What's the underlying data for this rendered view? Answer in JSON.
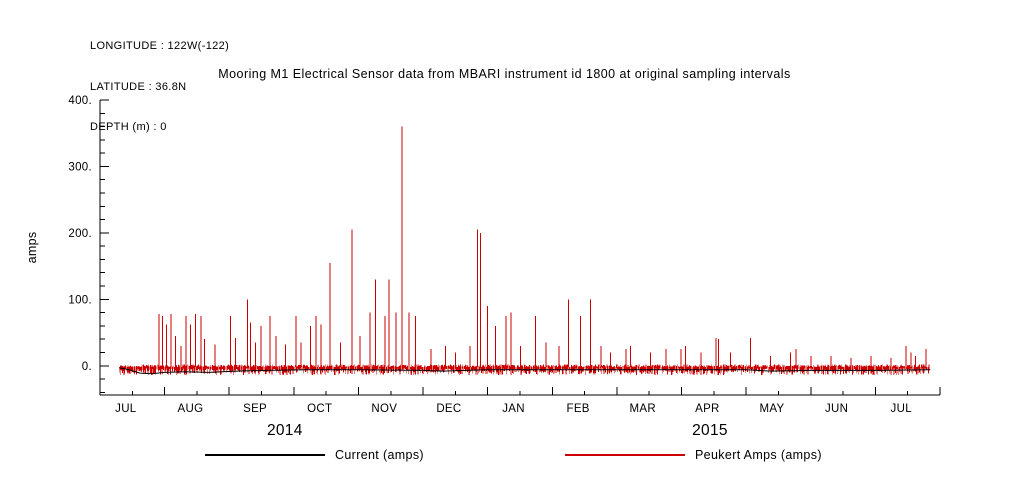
{
  "meta": {
    "longitude": "LONGITUDE : 122W(-122)",
    "latitude": "LATITUDE : 36.8N",
    "depth": "DEPTH (m) : 0"
  },
  "chart_data": {
    "type": "line",
    "title": "Mooring M1 Electrical Sensor data from MBARI instrument id 1800 at original sampling intervals",
    "ylabel": "amps",
    "xlabel": "",
    "xlim": [
      0,
      13
    ],
    "ylim": [
      -44,
      400
    ],
    "grid": false,
    "legend_position": "bottom",
    "yticks": [
      {
        "value": 0,
        "label": "0."
      },
      {
        "value": 100,
        "label": "100."
      },
      {
        "value": 200,
        "label": "200."
      },
      {
        "value": 300,
        "label": "300."
      },
      {
        "value": 400,
        "label": "400."
      }
    ],
    "y_minor_step": 20,
    "month_labels": [
      "JUL",
      "AUG",
      "SEP",
      "OCT",
      "NOV",
      "DEC",
      "JAN",
      "FEB",
      "MAR",
      "APR",
      "MAY",
      "JUN",
      "JUL"
    ],
    "year_labels": [
      {
        "label": "2014",
        "t": 2.86
      },
      {
        "label": "2015",
        "t": 9.44
      }
    ],
    "x_range_data": [
      0.3,
      12.85
    ],
    "series": [
      {
        "name": "Current (amps)",
        "color": "#000000",
        "style": "line",
        "points": [
          [
            0.3,
            -3
          ],
          [
            0.45,
            -6
          ],
          [
            0.62,
            -11
          ],
          [
            0.8,
            -12
          ],
          [
            1.0,
            -10
          ],
          [
            1.3,
            -9
          ],
          [
            1.7,
            -10
          ],
          [
            2.1,
            -8
          ],
          [
            2.6,
            -7
          ],
          [
            3.2,
            -6
          ],
          [
            4.0,
            -6
          ],
          [
            5.0,
            -7
          ],
          [
            5.3,
            -8
          ],
          [
            6.0,
            -6
          ],
          [
            7.0,
            -6
          ],
          [
            8.0,
            -6
          ],
          [
            9.0,
            -6
          ],
          [
            10.0,
            -6
          ],
          [
            10.4,
            -8
          ],
          [
            11.0,
            -7
          ],
          [
            12.0,
            -7
          ],
          [
            12.85,
            -6
          ]
        ]
      },
      {
        "name": "Peukert Amps (amps)",
        "color": "#cc0000",
        "style": "spikes",
        "baseline": -2,
        "noise_up": 4,
        "noise_down": 10,
        "spikes": [
          [
            0.91,
            78
          ],
          [
            0.97,
            75
          ],
          [
            1.03,
            62
          ],
          [
            1.1,
            78
          ],
          [
            1.17,
            45
          ],
          [
            1.25,
            30
          ],
          [
            1.33,
            75
          ],
          [
            1.4,
            62
          ],
          [
            1.48,
            78
          ],
          [
            1.56,
            75
          ],
          [
            1.62,
            40
          ],
          [
            1.78,
            32
          ],
          [
            2.02,
            75
          ],
          [
            2.1,
            42
          ],
          [
            2.28,
            100
          ],
          [
            2.33,
            65
          ],
          [
            2.41,
            35
          ],
          [
            2.49,
            60
          ],
          [
            2.63,
            75
          ],
          [
            2.72,
            45
          ],
          [
            2.87,
            32
          ],
          [
            3.03,
            75
          ],
          [
            3.11,
            35
          ],
          [
            3.26,
            60
          ],
          [
            3.34,
            75
          ],
          [
            3.42,
            62
          ],
          [
            3.56,
            155
          ],
          [
            3.72,
            35
          ],
          [
            3.9,
            205
          ],
          [
            4.02,
            45
          ],
          [
            4.18,
            80
          ],
          [
            4.26,
            130
          ],
          [
            4.41,
            75
          ],
          [
            4.47,
            130
          ],
          [
            4.58,
            80
          ],
          [
            4.67,
            360
          ],
          [
            4.78,
            80
          ],
          [
            4.88,
            75
          ],
          [
            5.12,
            25
          ],
          [
            5.35,
            30
          ],
          [
            5.5,
            20
          ],
          [
            5.73,
            30
          ],
          [
            5.84,
            205
          ],
          [
            5.89,
            200
          ],
          [
            6.0,
            90
          ],
          [
            6.12,
            60
          ],
          [
            6.28,
            75
          ],
          [
            6.36,
            80
          ],
          [
            6.51,
            30
          ],
          [
            6.74,
            75
          ],
          [
            6.9,
            35
          ],
          [
            7.1,
            30
          ],
          [
            7.25,
            100
          ],
          [
            7.44,
            75
          ],
          [
            7.59,
            100
          ],
          [
            7.75,
            30
          ],
          [
            7.9,
            20
          ],
          [
            8.14,
            25
          ],
          [
            8.21,
            30
          ],
          [
            8.52,
            20
          ],
          [
            8.76,
            25
          ],
          [
            8.99,
            25
          ],
          [
            9.06,
            30
          ],
          [
            9.3,
            20
          ],
          [
            9.53,
            42
          ],
          [
            9.57,
            40
          ],
          [
            9.76,
            20
          ],
          [
            10.07,
            42
          ],
          [
            10.38,
            15
          ],
          [
            10.69,
            20
          ],
          [
            10.77,
            25
          ],
          [
            11.0,
            15
          ],
          [
            11.31,
            15
          ],
          [
            11.62,
            12
          ],
          [
            11.93,
            15
          ],
          [
            12.24,
            12
          ],
          [
            12.47,
            30
          ],
          [
            12.55,
            20
          ],
          [
            12.62,
            15
          ],
          [
            12.78,
            25
          ]
        ]
      }
    ]
  }
}
